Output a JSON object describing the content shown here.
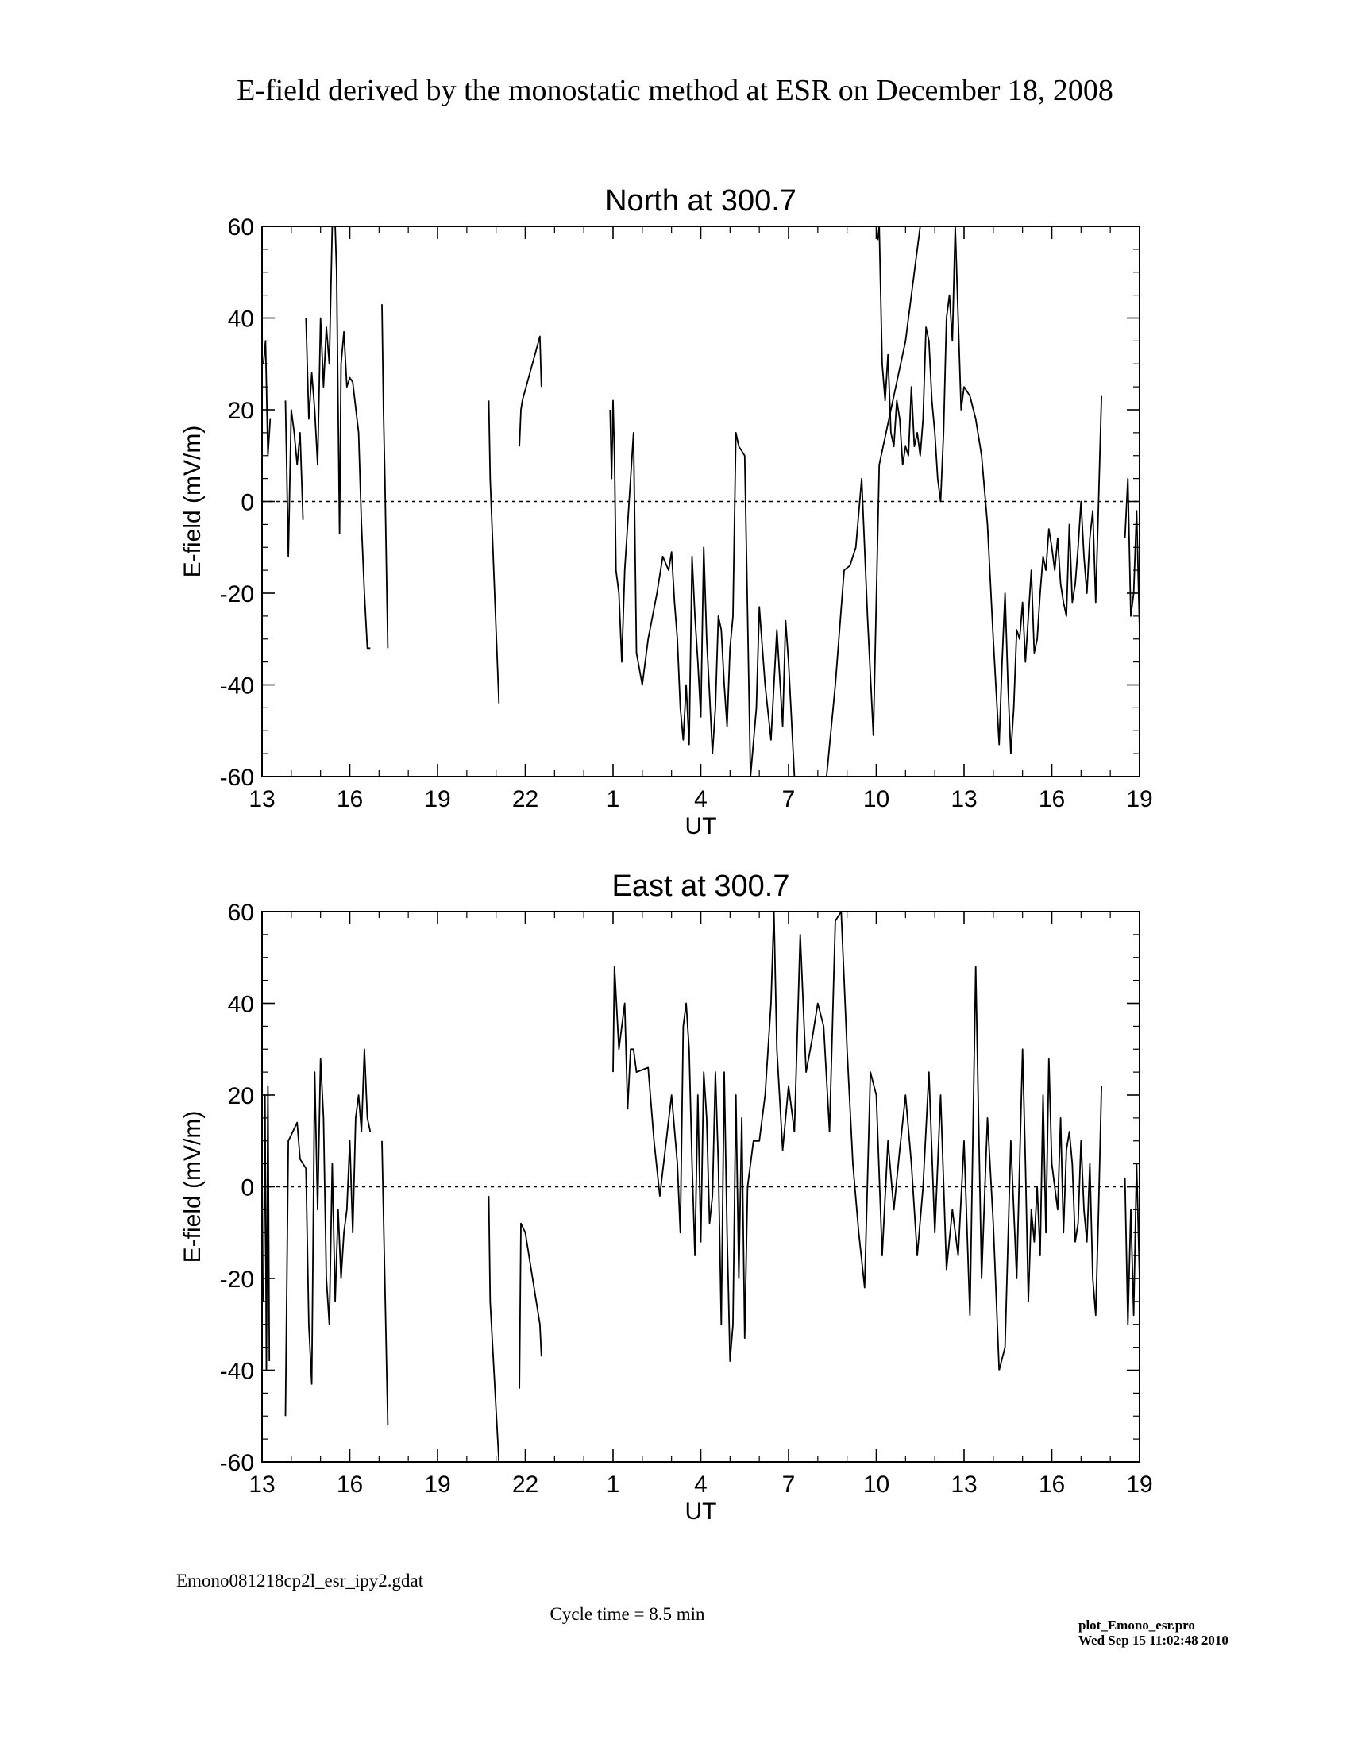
{
  "page": {
    "title": "E-field derived by the monostatic method at ESR on December 18, 2008",
    "file_label": "Emono081218cp2l_esr_ipy2.gdat",
    "cycle_label": "Cycle time = 8.5 min",
    "program_label": "plot_Emono_esr.pro",
    "timestamp_label": "Wed Sep 15 11:02:48 2010"
  },
  "chart_data": [
    {
      "type": "line",
      "title": "North at 300.7",
      "xlabel": "UT",
      "ylabel": "E-field (mV/m)",
      "xlim": [
        0,
        30
      ],
      "ylim": [
        -60,
        60
      ],
      "xticks": [
        0,
        3,
        6,
        9,
        12,
        15,
        18,
        21,
        24,
        27,
        30
      ],
      "xtick_labels": [
        "13",
        "16",
        "19",
        "22",
        "1",
        "4",
        "7",
        "10",
        "13",
        "16",
        "19"
      ],
      "yticks": [
        -60,
        -40,
        -20,
        0,
        20,
        40,
        60
      ],
      "ytick_labels": [
        "-60",
        "-40",
        "-20",
        "0",
        "20",
        "40",
        "60"
      ],
      "zero_line": true,
      "series": [
        {
          "x": [
            0.05,
            0.12,
            0.2,
            0.28
          ],
          "y": [
            30,
            35,
            10,
            18
          ]
        },
        {
          "x": [
            0.8,
            0.85,
            0.9,
            1.0,
            1.1,
            1.2,
            1.3,
            1.4
          ],
          "y": [
            22,
            5,
            -12,
            20,
            15,
            8,
            15,
            -4
          ]
        },
        {
          "x": [
            1.5,
            1.6,
            1.7,
            1.8,
            1.9,
            2.0,
            2.1,
            2.2,
            2.3,
            2.4,
            2.5,
            2.55,
            2.6,
            2.65,
            2.7,
            2.8,
            2.9,
            3.0,
            3.1,
            3.3,
            3.4,
            3.5,
            3.6,
            3.7
          ],
          "y": [
            40,
            18,
            28,
            20,
            8,
            40,
            25,
            38,
            30,
            60,
            60,
            50,
            20,
            -7,
            30,
            37,
            25,
            27,
            26,
            15,
            -5,
            -20,
            -32,
            -32
          ]
        },
        {
          "x": [
            4.1,
            4.15,
            4.2,
            4.3
          ],
          "y": [
            43,
            20,
            5,
            -32
          ]
        },
        {
          "x": [
            7.75,
            7.8,
            8.1
          ],
          "y": [
            22,
            5,
            -44
          ]
        },
        {
          "x": [
            8.8,
            8.85,
            8.9,
            9.5,
            9.55
          ],
          "y": [
            12,
            20,
            22,
            36,
            25
          ]
        },
        {
          "x": [
            11.9,
            11.95,
            12.0,
            12.05,
            12.1,
            12.2,
            12.3,
            12.4,
            12.5,
            12.6,
            12.7,
            12.8,
            13.0,
            13.2,
            13.5,
            13.7,
            13.9,
            14.0,
            14.1,
            14.2,
            14.3,
            14.4,
            14.5,
            14.6,
            14.7,
            14.8,
            14.9,
            15.0,
            15.1,
            15.2,
            15.3,
            15.4,
            15.5,
            15.6,
            15.7,
            15.8,
            15.9,
            16.0,
            16.1,
            16.2,
            16.3,
            16.5,
            16.7,
            16.9,
            17.0,
            17.2,
            17.4,
            17.6,
            17.8,
            17.9,
            18.0,
            18.2,
            18.4,
            18.6,
            18.8,
            19.0,
            19.3,
            19.6,
            19.9,
            20.1,
            20.3,
            20.5,
            20.7,
            20.9,
            21.1,
            21.5,
            22.0,
            22.5
          ],
          "y": [
            20,
            5,
            22,
            10,
            -15,
            -20,
            -35,
            -15,
            -5,
            5,
            15,
            -33,
            -40,
            -30,
            -20,
            -12,
            -15,
            -11,
            -22,
            -30,
            -45,
            -52,
            -40,
            -53,
            -12,
            -25,
            -35,
            -47,
            -10,
            -30,
            -42,
            -55,
            -45,
            -25,
            -28,
            -40,
            -49,
            -32,
            -25,
            15,
            12,
            10,
            -60,
            -45,
            -23,
            -40,
            -52,
            -28,
            -49,
            -26,
            -35,
            -60,
            -60,
            -60,
            -60,
            -60,
            -60,
            -40,
            -15,
            -14,
            -10,
            5,
            -25,
            -51,
            8,
            20,
            35,
            60
          ]
        },
        {
          "x": [
            21.05,
            21.1,
            21.2,
            21.3,
            21.4,
            21.5,
            21.6,
            21.7,
            21.8,
            21.9,
            22.0,
            22.1,
            22.2,
            22.3,
            22.4,
            22.5,
            22.6,
            22.7,
            22.8,
            22.9,
            23.0,
            23.1,
            23.2,
            23.3,
            23.4,
            23.5,
            23.6,
            23.7,
            23.8,
            23.9,
            24.0,
            24.2,
            24.4,
            24.6,
            24.8,
            25.0,
            25.2,
            25.3,
            25.4,
            25.5,
            25.6,
            25.7,
            25.8,
            25.9,
            26.0,
            26.1,
            26.2,
            26.3,
            26.4,
            26.5,
            26.6,
            26.7,
            26.8,
            26.9,
            27.0,
            27.1,
            27.2,
            27.3,
            27.4,
            27.5,
            27.6,
            27.7,
            27.8,
            27.9,
            28.0,
            28.1,
            28.2,
            28.3,
            28.4,
            28.5,
            28.6,
            28.7
          ],
          "y": [
            57,
            60,
            30,
            22,
            32,
            15,
            12,
            22,
            18,
            8,
            12,
            10,
            25,
            12,
            15,
            10,
            18,
            38,
            35,
            22,
            15,
            5,
            0,
            15,
            40,
            45,
            35,
            60,
            40,
            20,
            25,
            23,
            18,
            10,
            -5,
            -30,
            -53,
            -35,
            -20,
            -40,
            -55,
            -45,
            -28,
            -30,
            -22,
            -35,
            -25,
            -15,
            -33,
            -30,
            -20,
            -12,
            -15,
            -6,
            -10,
            -15,
            -8,
            -18,
            -22,
            -25,
            -5,
            -22,
            -18,
            -10,
            0,
            -12,
            -20,
            -8,
            -2,
            -22,
            0,
            23
          ]
        },
        {
          "x": [
            29.5,
            29.6,
            29.7,
            29.8,
            29.9,
            30.0
          ],
          "y": [
            -8,
            5,
            -25,
            -20,
            -2,
            -28
          ]
        }
      ]
    },
    {
      "type": "line",
      "title": "East at 300.7",
      "xlabel": "UT",
      "ylabel": "E-field (mV/m)",
      "xlim": [
        0,
        30
      ],
      "ylim": [
        -60,
        60
      ],
      "xticks": [
        0,
        3,
        6,
        9,
        12,
        15,
        18,
        21,
        24,
        27,
        30
      ],
      "xtick_labels": [
        "13",
        "16",
        "19",
        "22",
        "1",
        "4",
        "7",
        "10",
        "13",
        "16",
        "19"
      ],
      "yticks": [
        -60,
        -40,
        -20,
        0,
        20,
        40,
        60
      ],
      "ytick_labels": [
        "-60",
        "-40",
        "-20",
        "0",
        "20",
        "40",
        "60"
      ],
      "zero_line": true,
      "series": [
        {
          "x": [
            0.05,
            0.1,
            0.15,
            0.2,
            0.25
          ],
          "y": [
            -25,
            20,
            -40,
            22,
            -38
          ]
        },
        {
          "x": [
            0.8,
            0.9,
            1.2,
            1.3,
            1.5,
            1.6,
            1.7,
            1.8,
            1.9,
            2.0,
            2.1,
            2.2,
            2.3,
            2.4,
            2.5,
            2.6,
            2.7,
            2.8,
            2.9,
            3.0,
            3.1,
            3.2,
            3.3,
            3.4,
            3.5,
            3.6,
            3.7
          ],
          "y": [
            -50,
            10,
            14,
            6,
            4,
            -30,
            -43,
            25,
            -5,
            28,
            15,
            -20,
            -30,
            5,
            -25,
            -5,
            -20,
            -10,
            -5,
            10,
            -10,
            15,
            20,
            12,
            30,
            15,
            12
          ]
        },
        {
          "x": [
            4.1,
            4.3
          ],
          "y": [
            10,
            -52
          ]
        },
        {
          "x": [
            7.75,
            7.8,
            8.1
          ],
          "y": [
            -2,
            -25,
            -60
          ]
        },
        {
          "x": [
            8.8,
            8.85,
            9.0,
            9.5,
            9.55
          ],
          "y": [
            -44,
            -8,
            -10,
            -30,
            -37
          ]
        },
        {
          "x": [
            12.0,
            12.05,
            12.2,
            12.4,
            12.5,
            12.6,
            12.7,
            12.8,
            13.2,
            13.4,
            13.6,
            14.0,
            14.2,
            14.3,
            14.4,
            14.5,
            14.6,
            14.7,
            14.8,
            14.9,
            15.0,
            15.1,
            15.2,
            15.3,
            15.4,
            15.5,
            15.6,
            15.7,
            15.8,
            15.9,
            16.0,
            16.1,
            16.2,
            16.3,
            16.4,
            16.5,
            16.6,
            16.8,
            17.0,
            17.2,
            17.4,
            17.5,
            17.6,
            17.8,
            18.0,
            18.2,
            18.4,
            18.6,
            18.8,
            19.0,
            19.2,
            19.4,
            19.6,
            19.8,
            20.0,
            20.2,
            20.4,
            20.6,
            20.8,
            21.0,
            21.2,
            21.4,
            21.6,
            21.8,
            22.0,
            22.2,
            22.4,
            22.6,
            22.8,
            23.0,
            23.2,
            23.4,
            23.6,
            23.8,
            24.0,
            24.2,
            24.4,
            24.6,
            24.8,
            25.0,
            25.2
          ],
          "y": [
            25,
            48,
            30,
            40,
            17,
            30,
            30,
            25,
            26,
            10,
            -2,
            20,
            5,
            -10,
            35,
            40,
            30,
            5,
            -15,
            20,
            -12,
            25,
            15,
            -8,
            -2,
            25,
            5,
            -30,
            25,
            -10,
            -38,
            -30,
            20,
            -20,
            15,
            -33,
            0,
            10,
            10,
            20,
            40,
            60,
            30,
            8,
            22,
            12,
            55,
            25,
            32,
            40,
            35,
            12,
            58,
            60,
            30,
            5,
            -10,
            -22,
            25,
            20,
            -15,
            10,
            -5,
            8,
            20,
            5,
            -15,
            0,
            25,
            -10,
            20,
            -18,
            -5,
            -15,
            10,
            -28,
            48,
            -20,
            15,
            -8,
            -40
          ]
        },
        {
          "x": [
            25.2,
            25.4,
            25.6,
            25.8,
            26.0,
            26.1,
            26.2,
            26.3,
            26.4,
            26.5,
            26.6,
            26.7,
            26.8,
            26.9,
            27.0,
            27.1,
            27.2,
            27.3,
            27.4,
            27.5,
            27.6,
            27.7,
            27.8,
            27.9,
            28.0,
            28.1,
            28.2,
            28.3,
            28.4,
            28.5,
            28.6,
            28.7
          ],
          "y": [
            -40,
            -35,
            10,
            -20,
            30,
            5,
            -25,
            -5,
            -12,
            0,
            -15,
            20,
            -10,
            28,
            5,
            0,
            -5,
            15,
            -10,
            8,
            12,
            5,
            -12,
            -8,
            10,
            -5,
            -12,
            5,
            -20,
            -28,
            -5,
            22
          ]
        },
        {
          "x": [
            29.5,
            29.6,
            29.7,
            29.8,
            29.9,
            30.0
          ],
          "y": [
            2,
            -30,
            -5,
            -28,
            5,
            -20
          ]
        }
      ]
    }
  ]
}
